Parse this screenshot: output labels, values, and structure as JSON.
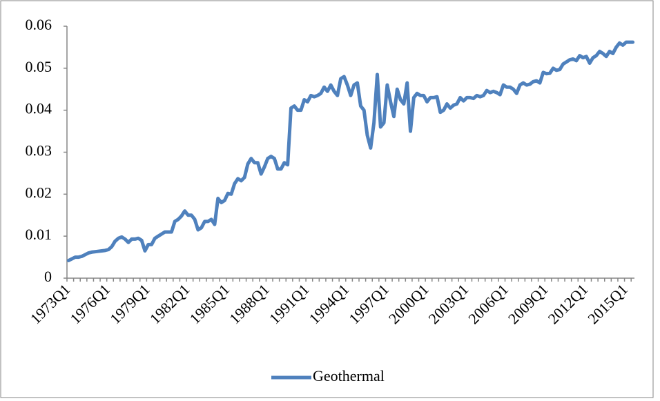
{
  "chart_data": {
    "type": "line",
    "categories": [
      "1973Q1",
      null,
      null,
      null,
      null,
      null,
      null,
      null,
      null,
      null,
      null,
      null,
      "1976Q1",
      null,
      null,
      null,
      null,
      null,
      null,
      null,
      null,
      null,
      null,
      null,
      "1979Q1",
      null,
      null,
      null,
      null,
      null,
      null,
      null,
      null,
      null,
      null,
      null,
      "1982Q1",
      null,
      null,
      null,
      null,
      null,
      null,
      null,
      null,
      null,
      null,
      null,
      "1985Q1",
      null,
      null,
      null,
      null,
      null,
      null,
      null,
      null,
      null,
      null,
      null,
      "1988Q1",
      null,
      null,
      null,
      null,
      null,
      null,
      null,
      null,
      null,
      null,
      null,
      "1991Q1",
      null,
      null,
      null,
      null,
      null,
      null,
      null,
      null,
      null,
      null,
      null,
      "1994Q1",
      null,
      null,
      null,
      null,
      null,
      null,
      null,
      null,
      null,
      null,
      null,
      "1997Q1",
      null,
      null,
      null,
      null,
      null,
      null,
      null,
      null,
      null,
      null,
      null,
      "2000Q1",
      null,
      null,
      null,
      null,
      null,
      null,
      null,
      null,
      null,
      null,
      null,
      "2003Q1",
      null,
      null,
      null,
      null,
      null,
      null,
      null,
      null,
      null,
      null,
      null,
      "2006Q1",
      null,
      null,
      null,
      null,
      null,
      null,
      null,
      null,
      null,
      null,
      null,
      "2009Q1",
      null,
      null,
      null,
      null,
      null,
      null,
      null,
      null,
      null,
      null,
      null,
      "2012Q1",
      null,
      null,
      null,
      null,
      null,
      null,
      null,
      null,
      null,
      null,
      null,
      "2015Q1",
      null,
      null
    ],
    "series": [
      {
        "name": "Geothermal",
        "color": "#4f81bd",
        "values": [
          0.0042,
          0.0046,
          0.005,
          0.005,
          0.0052,
          0.0056,
          0.006,
          0.0062,
          0.0063,
          0.0064,
          0.0065,
          0.0066,
          0.0068,
          0.0075,
          0.0088,
          0.0095,
          0.0098,
          0.0093,
          0.0085,
          0.0093,
          0.0093,
          0.0095,
          0.009,
          0.0065,
          0.008,
          0.008,
          0.0095,
          0.01,
          0.0105,
          0.011,
          0.011,
          0.011,
          0.0135,
          0.014,
          0.0148,
          0.016,
          0.015,
          0.015,
          0.014,
          0.0115,
          0.012,
          0.0135,
          0.0135,
          0.014,
          0.0128,
          0.019,
          0.018,
          0.0185,
          0.0202,
          0.02,
          0.0225,
          0.0237,
          0.0232,
          0.024,
          0.0272,
          0.0285,
          0.0275,
          0.0275,
          0.0248,
          0.0265,
          0.0285,
          0.029,
          0.0285,
          0.026,
          0.026,
          0.0275,
          0.027,
          0.0405,
          0.041,
          0.04,
          0.04,
          0.0425,
          0.042,
          0.0435,
          0.0432,
          0.0435,
          0.044,
          0.0455,
          0.0445,
          0.046,
          0.0445,
          0.0435,
          0.0475,
          0.048,
          0.046,
          0.0435,
          0.046,
          0.0465,
          0.041,
          0.04,
          0.034,
          0.031,
          0.037,
          0.0485,
          0.036,
          0.037,
          0.046,
          0.042,
          0.0385,
          0.045,
          0.0425,
          0.0415,
          0.0465,
          0.035,
          0.043,
          0.044,
          0.0435,
          0.0435,
          0.042,
          0.043,
          0.043,
          0.0432,
          0.0395,
          0.04,
          0.0415,
          0.0405,
          0.0412,
          0.0415,
          0.043,
          0.0422,
          0.043,
          0.043,
          0.0428,
          0.0435,
          0.0432,
          0.0435,
          0.0447,
          0.0442,
          0.0445,
          0.0442,
          0.0437,
          0.046,
          0.0455,
          0.0455,
          0.045,
          0.044,
          0.046,
          0.0465,
          0.046,
          0.0462,
          0.0468,
          0.047,
          0.0465,
          0.049,
          0.0487,
          0.0488,
          0.05,
          0.0495,
          0.0497,
          0.051,
          0.0515,
          0.052,
          0.0522,
          0.0518,
          0.053,
          0.0525,
          0.0528,
          0.0512,
          0.0525,
          0.053,
          0.054,
          0.0535,
          0.0528,
          0.054,
          0.0535,
          0.055,
          0.056,
          0.0555,
          0.0562,
          0.0562,
          0.0562
        ]
      }
    ],
    "ylim": [
      0,
      0.06
    ],
    "yticks": [
      0,
      0.01,
      0.02,
      0.03,
      0.04,
      0.05,
      0.06
    ],
    "grid": false,
    "legend": "bottom"
  }
}
